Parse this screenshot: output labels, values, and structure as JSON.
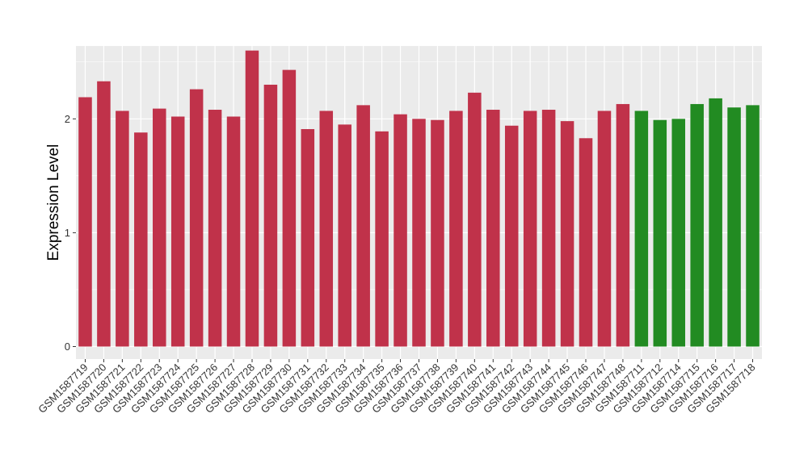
{
  "chart_data": {
    "type": "bar",
    "title": "",
    "xlabel": "",
    "ylabel": "Expression Level",
    "ylim": [
      -0.11,
      2.64
    ],
    "yticks": [
      0,
      1,
      2
    ],
    "grid": true,
    "legend": "none",
    "colors": {
      "group1": "#C0324A",
      "group2": "#228B22",
      "panel": "#EBEBEB",
      "grid": "#FFFFFF"
    },
    "categories": [
      "GSM1587719",
      "GSM1587720",
      "GSM1587721",
      "GSM1587722",
      "GSM1587723",
      "GSM1587724",
      "GSM1587725",
      "GSM1587726",
      "GSM1587727",
      "GSM1587728",
      "GSM1587729",
      "GSM1587730",
      "GSM1587731",
      "GSM1587732",
      "GSM1587733",
      "GSM1587734",
      "GSM1587735",
      "GSM1587736",
      "GSM1587737",
      "GSM1587738",
      "GSM1587739",
      "GSM1587740",
      "GSM1587741",
      "GSM1587742",
      "GSM1587743",
      "GSM1587744",
      "GSM1587745",
      "GSM1587746",
      "GSM1587747",
      "GSM1587748",
      "GSM1587711",
      "GSM1587712",
      "GSM1587714",
      "GSM1587715",
      "GSM1587716",
      "GSM1587717",
      "GSM1587718"
    ],
    "values": [
      2.19,
      2.33,
      2.07,
      1.88,
      2.09,
      2.02,
      2.26,
      2.08,
      2.02,
      2.6,
      2.3,
      2.43,
      1.91,
      2.07,
      1.95,
      2.12,
      1.89,
      2.04,
      2.0,
      1.99,
      2.07,
      2.23,
      2.08,
      1.94,
      2.07,
      2.08,
      1.98,
      1.83,
      2.07,
      2.13,
      2.07,
      1.99,
      2.0,
      2.13,
      2.18,
      2.1,
      2.12
    ],
    "groups": [
      1,
      1,
      1,
      1,
      1,
      1,
      1,
      1,
      1,
      1,
      1,
      1,
      1,
      1,
      1,
      1,
      1,
      1,
      1,
      1,
      1,
      1,
      1,
      1,
      1,
      1,
      1,
      1,
      1,
      1,
      2,
      2,
      2,
      2,
      2,
      2,
      2
    ]
  }
}
